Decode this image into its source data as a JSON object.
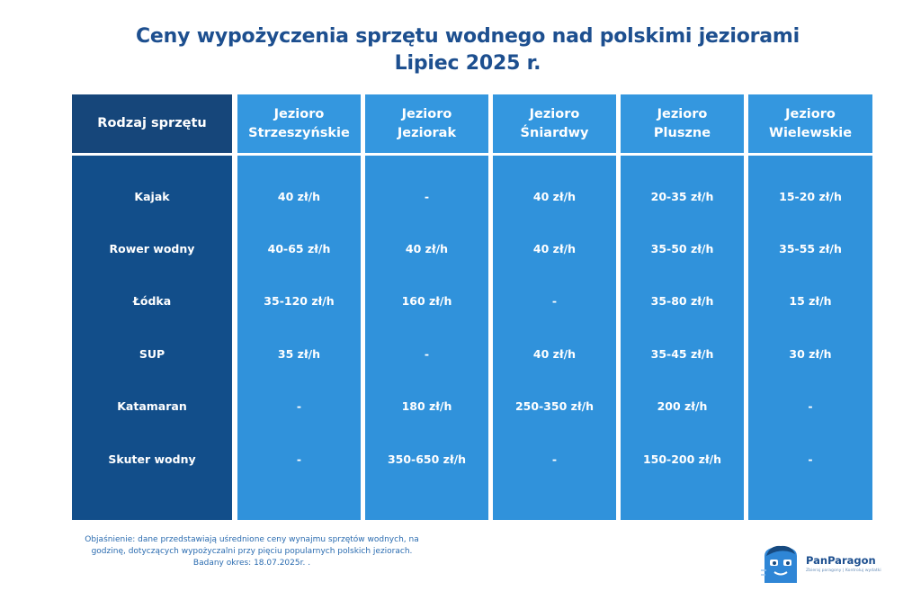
{
  "title": {
    "line1": "Ceny wypożyczenia sprzętu wodnego nad polskimi jeziorami",
    "line2": "Lipiec 2025 r."
  },
  "table": {
    "header_first": "Rodzaj sprzętu",
    "lakes": [
      {
        "line1": "Jezioro",
        "line2": "Strzeszyńskie"
      },
      {
        "line1": "Jezioro",
        "line2": "Jeziorak"
      },
      {
        "line1": "Jezioro",
        "line2": "Śniardwy"
      },
      {
        "line1": "Jezioro",
        "line2": "Pluszne"
      },
      {
        "line1": "Jezioro",
        "line2": "Wielewskie"
      }
    ],
    "rows": [
      {
        "name": "Kajak",
        "values": [
          "40 zł/h",
          "-",
          "40 zł/h",
          "20-35 zł/h",
          "15-20 zł/h"
        ]
      },
      {
        "name": "Rower wodny",
        "values": [
          "40-65 zł/h",
          "40 zł/h",
          "40 zł/h",
          "35-50 zł/h",
          "35-55 zł/h"
        ]
      },
      {
        "name": "Łódka",
        "values": [
          "35-120 zł/h",
          "160 zł/h",
          "-",
          "35-80 zł/h",
          "15 zł/h"
        ]
      },
      {
        "name": "SUP",
        "values": [
          "35 zł/h",
          "-",
          "40 zł/h",
          "35-45 zł/h",
          "30 zł/h"
        ]
      },
      {
        "name": "Katamaran",
        "values": [
          "-",
          "180 zł/h",
          "250-350 zł/h",
          "200 zł/h",
          "-"
        ]
      },
      {
        "name": "Skuter wodny",
        "values": [
          "-",
          "350-650 zł/h",
          "-",
          "150-200 zł/h",
          "-"
        ]
      }
    ]
  },
  "note": {
    "line1": "Objaśnienie: dane przedstawiają uśrednione ceny wynajmu sprzętów wodnych, na",
    "line2": "godzinę, dotyczących wypożyczalni przy pięciu popularnych polskich jeziorach.",
    "line3": "Badany okres: 18.07.2025r. ."
  },
  "logo": {
    "name": "PanParagon",
    "tagline": "Zbieraj paragony | Kontroluj wydatki",
    "icon": "mascot-icon",
    "brand_color": "#1d4f8f"
  },
  "colors": {
    "title": "#1d4f8f",
    "first_column": "#124e8a",
    "lake_columns": "#3092db"
  }
}
